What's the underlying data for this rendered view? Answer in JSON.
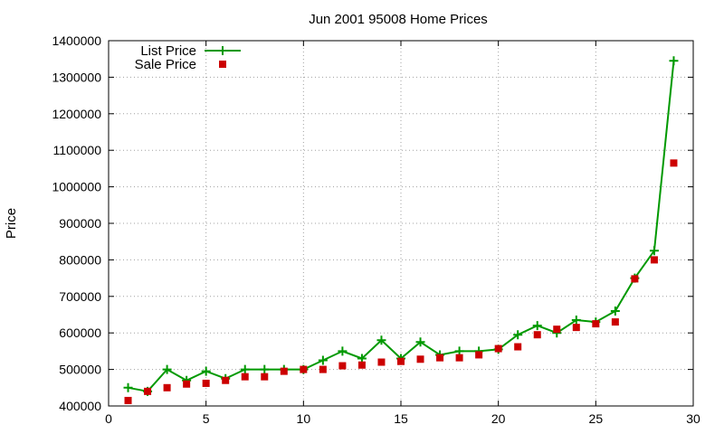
{
  "chart_data": {
    "type": "line",
    "title": "Jun 2001 95008 Home Prices",
    "xlabel": "",
    "ylabel": "Price",
    "xlim": [
      0,
      30
    ],
    "ylim": [
      400000,
      1400000
    ],
    "xticks": [
      0,
      5,
      10,
      15,
      20,
      25,
      30
    ],
    "yticks": [
      400000,
      500000,
      600000,
      700000,
      800000,
      900000,
      1000000,
      1100000,
      1200000,
      1300000,
      1400000
    ],
    "grid": true,
    "legend_position": "top-left",
    "series": [
      {
        "name": "List Price",
        "style": "line-with-plus-markers",
        "color": "#009900",
        "x": [
          1,
          2,
          3,
          4,
          5,
          6,
          7,
          8,
          9,
          10,
          11,
          12,
          13,
          14,
          15,
          16,
          17,
          18,
          19,
          20,
          21,
          22,
          23,
          24,
          25,
          26,
          27,
          28,
          29
        ],
        "y": [
          450000,
          440000,
          500000,
          470000,
          495000,
          475000,
          500000,
          500000,
          500000,
          500000,
          525000,
          550000,
          530000,
          580000,
          530000,
          575000,
          540000,
          550000,
          550000,
          555000,
          595000,
          620000,
          600000,
          635000,
          630000,
          660000,
          750000,
          825000,
          1345000
        ]
      },
      {
        "name": "Sale Price",
        "style": "square-markers",
        "color": "#cc0000",
        "x": [
          1,
          2,
          3,
          4,
          5,
          6,
          7,
          8,
          9,
          10,
          11,
          12,
          13,
          14,
          15,
          16,
          17,
          18,
          19,
          20,
          21,
          22,
          23,
          24,
          25,
          26,
          27,
          28,
          29
        ],
        "y": [
          415000,
          440000,
          450000,
          460000,
          462000,
          470000,
          480000,
          480000,
          495000,
          500000,
          500000,
          510000,
          512000,
          520000,
          522000,
          528000,
          532000,
          532000,
          540000,
          557000,
          562000,
          595000,
          610000,
          615000,
          625000,
          630000,
          748000,
          800000,
          1065000
        ]
      }
    ]
  }
}
